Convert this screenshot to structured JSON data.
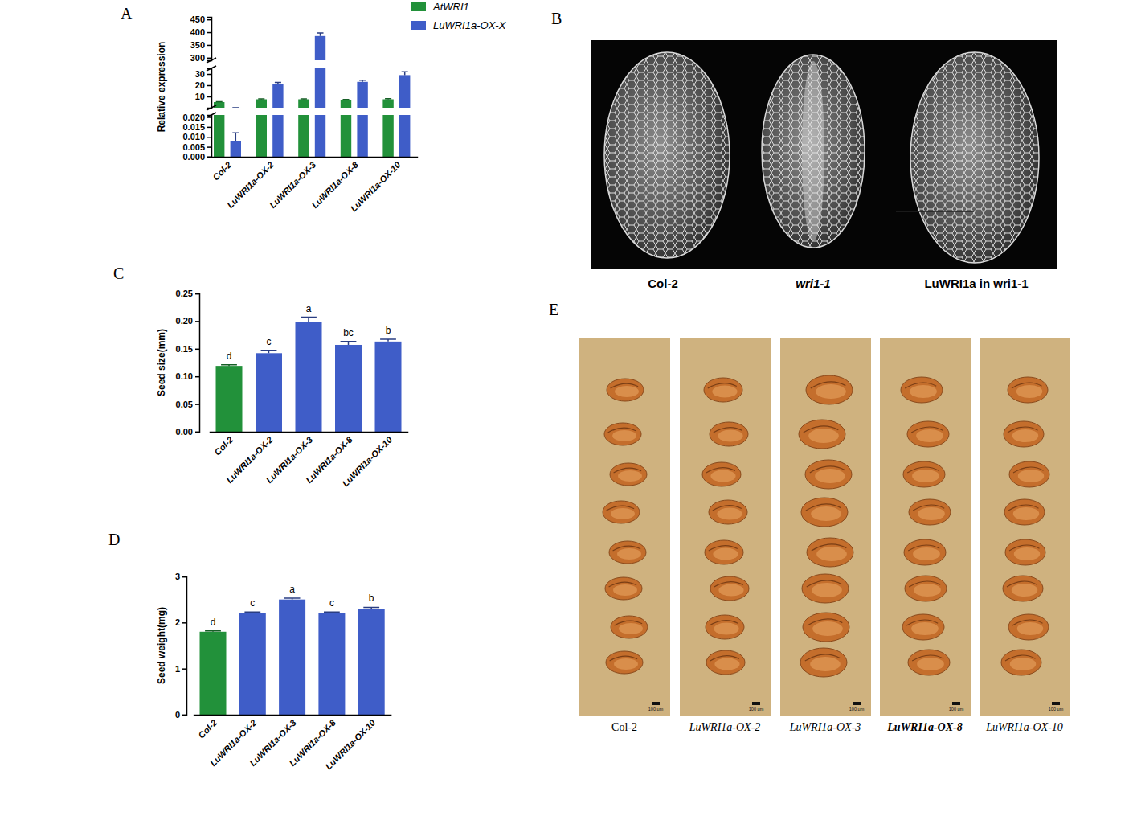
{
  "chart_data": [
    {
      "type": "bar",
      "title": "A",
      "ylabel": "Relative expression",
      "categories": [
        "Col-2",
        "LuWRI1a-OX-2",
        "LuWRI1a-OX-3",
        "LuWRI1a-OX-8",
        "LuWRI1a-OX-10"
      ],
      "series": [
        {
          "name": "AtWRI1",
          "color": "#22913a",
          "values": [
            5,
            7.5,
            7.5,
            7,
            7.5
          ],
          "errors": [
            0.3,
            0.4,
            0.4,
            0.3,
            0.5
          ]
        },
        {
          "name": "LuWRI1a-OX-X",
          "color": "#3f5dc8",
          "values": [
            0.008,
            21,
            385,
            23,
            29
          ],
          "errors": [
            0.004,
            1.5,
            12,
            1.5,
            3
          ]
        }
      ],
      "y_segments": [
        [
          0,
          0.021
        ],
        [
          0,
          35
        ],
        [
          290,
          460
        ]
      ],
      "yticks": [
        {
          "value": 0,
          "label": "0.000"
        },
        0.005,
        {
          "value": 0.01,
          "label": "0.010"
        },
        0.015,
        {
          "value": 0.02,
          "label": "0.020"
        },
        10,
        20,
        30,
        300,
        350,
        400,
        450
      ],
      "legend": "top-right"
    },
    {
      "type": "bar",
      "title": "C",
      "ylabel": "Seed size(mm)",
      "categories": [
        "Col-2",
        "LuWRI1a-OX-2",
        "LuWRI1a-OX-3",
        "LuWRI1a-OX-8",
        "LuWRI1a-OX-10"
      ],
      "values": [
        0.119,
        0.142,
        0.198,
        0.157,
        0.163
      ],
      "errors": [
        0.002,
        0.005,
        0.009,
        0.006,
        0.004
      ],
      "colors": [
        "#22913a",
        "#3f5dc8",
        "#3f5dc8",
        "#3f5dc8",
        "#3f5dc8"
      ],
      "ylim": [
        0,
        0.25
      ],
      "yticks": [
        {
          "value": 0,
          "label": "0.00"
        },
        0.05,
        {
          "value": 0.1,
          "label": "0.10"
        },
        0.15,
        {
          "value": 0.2,
          "label": "0.20"
        },
        0.25
      ],
      "annotations": [
        "d",
        "c",
        "a",
        "bc",
        "b"
      ]
    },
    {
      "type": "bar",
      "title": "D",
      "ylabel": "Seed weight(mg)",
      "categories": [
        "Col-2",
        "LuWRI1a-OX-2",
        "LuWRI1a-OX-3",
        "LuWRI1a-OX-8",
        "LuWRI1a-OX-10"
      ],
      "values": [
        1.8,
        2.2,
        2.5,
        2.2,
        2.3
      ],
      "errors": [
        0.02,
        0.03,
        0.03,
        0.03,
        0.03
      ],
      "colors": [
        "#22913a",
        "#3f5dc8",
        "#3f5dc8",
        "#3f5dc8",
        "#3f5dc8"
      ],
      "ylim": [
        0,
        3
      ],
      "yticks": [
        0,
        1,
        2,
        3
      ],
      "annotations": [
        "d",
        "c",
        "a",
        "c",
        "b"
      ]
    }
  ],
  "images": [
    {
      "title": "B",
      "labels": [
        "Col-2",
        "wri1-1",
        "LuWRI1a in wri1-1"
      ]
    },
    {
      "title": "E",
      "labels": [
        "Col-2",
        "LuWRI1a-OX-2",
        "LuWRI1a-OX-3",
        "LuWRI1a-OX-8",
        "LuWRI1a-OX-10"
      ],
      "scale_bars": [
        "100 μm",
        "100 μm",
        "100 μm",
        "100 μm",
        "100 μm"
      ]
    }
  ]
}
